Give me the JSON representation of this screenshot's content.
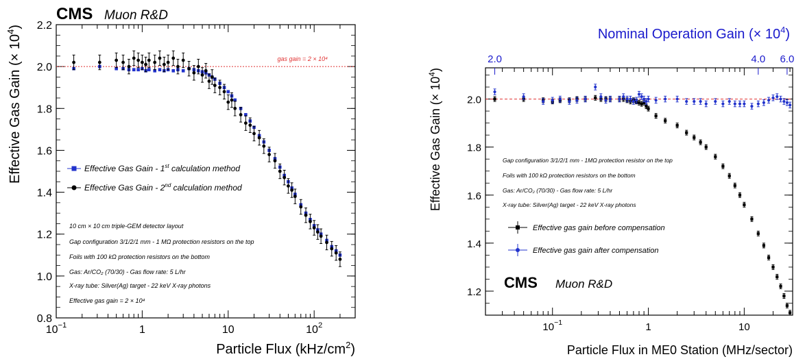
{
  "chart_data": [
    {
      "type": "scatter",
      "header": {
        "experiment": "CMS",
        "group": "Muon R&D"
      },
      "xlabel": "Particle Flux (kHz/cm²)",
      "xlabel_main": "Particle Flux (kHz/cm",
      "xlabel_sup": "2",
      "xlabel_end": ")",
      "ylabel": "Effective Gas Gain (× 10⁴)",
      "ylabel_main": "Effective Gas Gain (× 10",
      "ylabel_sup": "4",
      "ylabel_end": ")",
      "x_scale": "log",
      "xlim": [
        0.1,
        300
      ],
      "ylim": [
        0.8,
        2.2
      ],
      "x_ticks": [
        {
          "value": 0.1,
          "base": "10",
          "exp": "−1"
        },
        {
          "value": 1,
          "base": "1",
          "exp": ""
        },
        {
          "value": 10,
          "base": "10",
          "exp": ""
        },
        {
          "value": 100,
          "base": "10",
          "exp": "2"
        }
      ],
      "y_ticks": [
        {
          "value": 0.8,
          "label": "0.8"
        },
        {
          "value": 1.0,
          "label": "1.0"
        },
        {
          "value": 1.2,
          "label": "1.2"
        },
        {
          "value": 1.4,
          "label": "1.4"
        },
        {
          "value": 1.6,
          "label": "1.6"
        },
        {
          "value": 1.8,
          "label": "1.8"
        },
        {
          "value": 2.0,
          "label": "2.0"
        },
        {
          "value": 2.2,
          "label": "2.2"
        }
      ],
      "reference_line": {
        "y": 2.0,
        "label": "gas gain = 2 × 10⁴",
        "color": "#e03030"
      },
      "legend": {
        "placement": "middle-left"
      },
      "series": [
        {
          "name": "Effective Gas Gain - 1st calculation method",
          "label_main": "Effective Gas Gain - 1",
          "label_sup": "st",
          "label_end": " calculation method",
          "color": "#2233cc",
          "marker": "square",
          "err": 0.006,
          "x": [
            0.16,
            0.32,
            0.5,
            0.6,
            0.7,
            0.8,
            0.9,
            1.0,
            1.1,
            1.2,
            1.4,
            1.6,
            1.8,
            2.0,
            2.3,
            2.6,
            3.0,
            3.5,
            4.0,
            4.5,
            5.0,
            5.5,
            6.0,
            6.5,
            7.0,
            8.0,
            9.0,
            10,
            11,
            12,
            14,
            16,
            18,
            20,
            23,
            26,
            30,
            35,
            40,
            45,
            50,
            55,
            60,
            70,
            80,
            90,
            100,
            110,
            120,
            140,
            160,
            180,
            200
          ],
          "y": [
            1.99,
            2.0,
            1.99,
            1.99,
            1.985,
            1.985,
            1.985,
            1.99,
            1.98,
            1.985,
            1.98,
            1.985,
            1.98,
            1.985,
            1.98,
            1.985,
            1.98,
            1.99,
            1.985,
            1.98,
            1.975,
            1.97,
            1.96,
            1.95,
            1.94,
            1.92,
            1.9,
            1.88,
            1.86,
            1.84,
            1.8,
            1.77,
            1.74,
            1.71,
            1.67,
            1.64,
            1.6,
            1.56,
            1.52,
            1.48,
            1.45,
            1.42,
            1.39,
            1.34,
            1.3,
            1.27,
            1.24,
            1.22,
            1.2,
            1.17,
            1.14,
            1.12,
            1.1
          ]
        },
        {
          "name": "Effective Gas Gain - 2nd calculation method",
          "label_main": "Effective Gas Gain - 2",
          "label_sup": "nd",
          "label_end": " calculation method",
          "color": "#000000",
          "marker": "circle",
          "err": 0.035,
          "x": [
            0.16,
            0.32,
            0.5,
            0.6,
            0.7,
            0.8,
            0.9,
            1.0,
            1.1,
            1.2,
            1.4,
            1.6,
            1.8,
            2.0,
            2.3,
            2.6,
            3.0,
            3.5,
            4.0,
            4.5,
            5.0,
            5.5,
            6.0,
            6.5,
            7.0,
            8.0,
            9.0,
            10,
            11,
            12,
            14,
            16,
            18,
            20,
            23,
            26,
            30,
            35,
            40,
            45,
            50,
            55,
            60,
            70,
            80,
            90,
            100,
            110,
            120,
            140,
            160,
            180,
            200
          ],
          "y": [
            2.02,
            2.02,
            2.03,
            2.02,
            2.0,
            2.04,
            2.03,
            2.02,
            2.01,
            2.03,
            2.02,
            2.04,
            2.01,
            2.02,
            2.04,
            2.0,
            2.03,
            1.99,
            1.97,
            2.0,
            1.96,
            1.98,
            1.93,
            1.95,
            1.91,
            1.9,
            1.88,
            1.83,
            1.84,
            1.8,
            1.77,
            1.73,
            1.72,
            1.68,
            1.66,
            1.62,
            1.58,
            1.55,
            1.5,
            1.47,
            1.43,
            1.41,
            1.38,
            1.33,
            1.29,
            1.26,
            1.23,
            1.21,
            1.19,
            1.16,
            1.13,
            1.11,
            1.08
          ]
        }
      ],
      "notes": [
        "10 cm × 10 cm triple-GEM detector layout",
        "Gap configuration 3/1/2/1 mm - 1 MΩ protection resistors on the top",
        "Foils with 100 kΩ protection resistors on the bottom",
        "Gas: Ar/CO₂ (70/30) - Gas flow rate: 5 L/hr",
        "X-ray tube: Silver(Ag) target - 22 keV X-ray photons",
        "Effective gas gain = 2 × 10⁴"
      ]
    },
    {
      "type": "scatter",
      "header": {
        "experiment": "CMS",
        "group": "Muon R&D"
      },
      "xlabel": "Particle Flux in ME0 Station (MHz/sector)",
      "ylabel": "Effective Gas Gain (× 10⁴)",
      "ylabel_main": "Effective Gas Gain (× 10",
      "ylabel_sup": "4",
      "ylabel_end": ")",
      "x_scale": "log",
      "xlim": [
        0.02,
        32
      ],
      "ylim": [
        1.1,
        2.13
      ],
      "x_ticks": [
        {
          "value": 0.1,
          "base": "10",
          "exp": "−1"
        },
        {
          "value": 1,
          "base": "1",
          "exp": ""
        },
        {
          "value": 10,
          "base": "10",
          "exp": ""
        }
      ],
      "y_ticks": [
        {
          "value": 1.2,
          "label": "1.2"
        },
        {
          "value": 1.4,
          "label": "1.4"
        },
        {
          "value": 1.6,
          "label": "1.6"
        },
        {
          "value": 1.8,
          "label": "1.8"
        },
        {
          "value": 2.0,
          "label": "2.0"
        }
      ],
      "top_axis": {
        "label": "Nominal Operation Gain (× 10⁴)",
        "label_main": "Nominal Operation Gain (× 10",
        "label_sup": "4",
        "label_end": ")",
        "color": "#1a1acc",
        "ticks": [
          {
            "label": "2.0",
            "at_flux": 0.025
          },
          {
            "label": "4.0",
            "at_flux": 14
          },
          {
            "label": "6.0",
            "at_flux": 28
          }
        ]
      },
      "reference_line": {
        "y": 2.0,
        "color": "#e03030"
      },
      "legend": {
        "placement": "middle-left"
      },
      "series": [
        {
          "name": "Effective gas gain before compensation",
          "color": "#000000",
          "marker": "square",
          "err": 0.01,
          "x": [
            0.025,
            0.05,
            0.08,
            0.1,
            0.12,
            0.15,
            0.18,
            0.22,
            0.28,
            0.32,
            0.36,
            0.4,
            0.5,
            0.55,
            0.6,
            0.65,
            0.7,
            0.75,
            0.8,
            0.85,
            0.9,
            0.95,
            1.0,
            1.2,
            1.5,
            2.0,
            2.5,
            3.0,
            3.5,
            4.0,
            5.0,
            6.0,
            7.0,
            8.0,
            9.0,
            10,
            12,
            14,
            16,
            18,
            20,
            22,
            24,
            26,
            28,
            30
          ],
          "y": [
            2.0,
            2.0,
            1.995,
            1.99,
            1.995,
            1.995,
            2.0,
            2.0,
            2.005,
            2.0,
            2.0,
            2.0,
            2.0,
            2.0,
            1.995,
            1.99,
            1.995,
            1.99,
            1.985,
            1.98,
            1.985,
            1.97,
            1.96,
            1.93,
            1.91,
            1.89,
            1.86,
            1.84,
            1.82,
            1.8,
            1.76,
            1.72,
            1.68,
            1.64,
            1.6,
            1.56,
            1.5,
            1.44,
            1.39,
            1.34,
            1.3,
            1.26,
            1.22,
            1.18,
            1.14,
            1.11
          ]
        },
        {
          "name": "Effective gas gain after compensation",
          "color": "#2233cc",
          "marker": "circle",
          "err": 0.012,
          "x": [
            0.025,
            0.05,
            0.08,
            0.1,
            0.12,
            0.15,
            0.18,
            0.22,
            0.28,
            0.32,
            0.36,
            0.4,
            0.5,
            0.55,
            0.6,
            0.65,
            0.7,
            0.75,
            0.8,
            0.85,
            0.9,
            0.95,
            1.0,
            1.2,
            1.5,
            2.0,
            2.5,
            3.0,
            3.5,
            4.0,
            5.0,
            6.0,
            7.0,
            8.0,
            9.0,
            10,
            12,
            14,
            16,
            18,
            20,
            22,
            24,
            26,
            28,
            30
          ],
          "y": [
            2.03,
            2.01,
            1.99,
            1.995,
            2.0,
            1.99,
            1.995,
            2.0,
            2.05,
            2.01,
            1.995,
            2.0,
            2.0,
            2.01,
            2.0,
            2.0,
            1.99,
            1.995,
            2.02,
            2.01,
            2.0,
            1.99,
            2.0,
            1.995,
            2.0,
            2.0,
            1.99,
            1.99,
            1.99,
            1.98,
            1.99,
            1.98,
            1.99,
            1.98,
            1.98,
            1.98,
            1.97,
            1.98,
            1.985,
            1.995,
            2.005,
            2.01,
            2.0,
            1.99,
            1.985,
            1.975
          ]
        }
      ],
      "notes": [
        "Gap configuration 3/1/2/1 mm - 1MΩ protection resistor on the top",
        "Foils with 100 kΩ protection resistors on the bottom",
        "Gas: Ar/CO₂ (70/30) - Gas flow rate: 5 L/hr",
        "X-ray tube: Silver(Ag) target - 22 keV X-ray photons"
      ]
    }
  ]
}
